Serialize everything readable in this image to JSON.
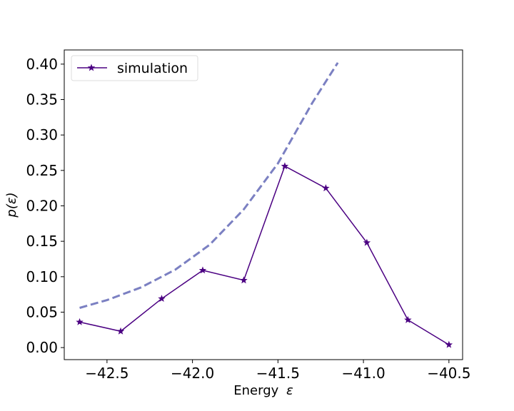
{
  "chart_data": {
    "type": "line",
    "xlabel": "Energy",
    "xlabel_symbol": "ε",
    "ylabel": "p(ε)",
    "xlim": [
      -42.75,
      -40.42
    ],
    "ylim": [
      -0.017,
      0.42
    ],
    "xticks": [
      -42.5,
      -42.0,
      -41.5,
      -41.0,
      -40.5
    ],
    "xtick_labels": [
      "−42.5",
      "−42.0",
      "−41.5",
      "−41.0",
      "−40.5"
    ],
    "yticks": [
      0.0,
      0.05,
      0.1,
      0.15,
      0.2,
      0.25,
      0.3,
      0.35,
      0.4
    ],
    "ytick_labels": [
      "0.00",
      "0.05",
      "0.10",
      "0.15",
      "0.20",
      "0.25",
      "0.30",
      "0.35",
      "0.40"
    ],
    "grid": false,
    "legend_position": "top-left",
    "series": [
      {
        "name": "simulation",
        "style": "solid",
        "marker": "star",
        "color": "#4b0082",
        "x": [
          -42.66,
          -42.42,
          -42.18,
          -41.94,
          -41.7,
          -41.46,
          -41.22,
          -40.98,
          -40.74,
          -40.5
        ],
        "y": [
          0.036,
          0.023,
          0.069,
          0.109,
          0.095,
          0.256,
          0.225,
          0.148,
          0.039,
          0.004
        ]
      },
      {
        "style": "dashed",
        "color": "#7b80c2",
        "x": [
          -42.66,
          -42.5,
          -42.3,
          -42.1,
          -41.9,
          -41.7,
          -41.5,
          -41.3,
          -41.15
        ],
        "y": [
          0.056,
          0.067,
          0.085,
          0.11,
          0.145,
          0.195,
          0.26,
          0.345,
          0.402
        ]
      }
    ]
  }
}
